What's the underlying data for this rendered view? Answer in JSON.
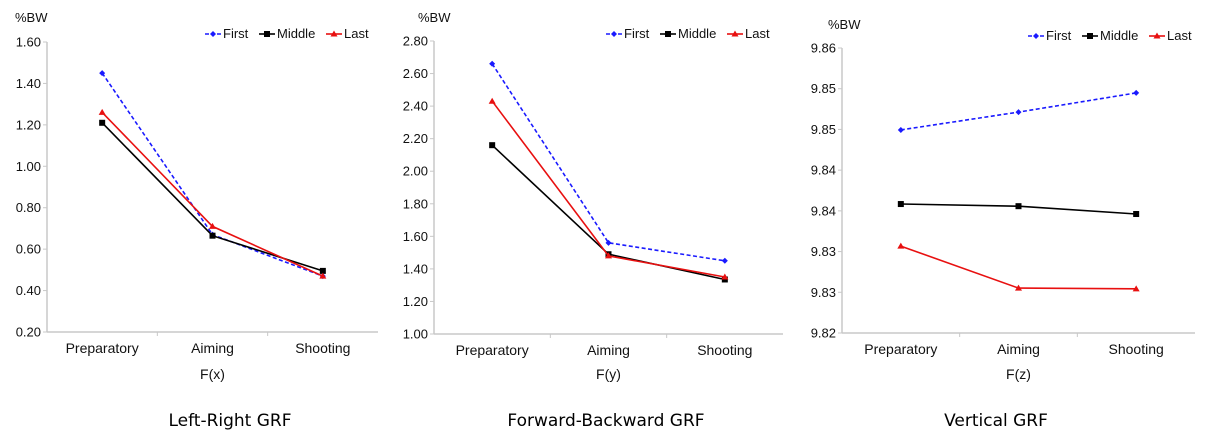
{
  "chart_data": [
    {
      "type": "line",
      "title": "Left-Right GRF",
      "xlabel": "F(x)",
      "ylabel": "%BW",
      "categories": [
        "Preparatory",
        "Aiming",
        "Shooting"
      ],
      "ylim": [
        0.2,
        1.6
      ],
      "yticks": [
        "0.20",
        "0.40",
        "0.60",
        "0.80",
        "1.00",
        "1.20",
        "1.40",
        "1.60"
      ],
      "legend": "top-right",
      "series": [
        {
          "name": "First",
          "values": [
            1.45,
            0.67,
            0.47
          ]
        },
        {
          "name": "Middle",
          "values": [
            1.21,
            0.665,
            0.495
          ]
        },
        {
          "name": "Last",
          "values": [
            1.26,
            0.71,
            0.47
          ]
        }
      ]
    },
    {
      "type": "line",
      "title": "Forward-Backward GRF",
      "xlabel": "F(y)",
      "ylabel": "%BW",
      "categories": [
        "Preparatory",
        "Aiming",
        "Shooting"
      ],
      "ylim": [
        1.0,
        2.8
      ],
      "yticks": [
        "1.00",
        "1.20",
        "1.40",
        "1.60",
        "1.80",
        "2.00",
        "2.20",
        "2.40",
        "2.60",
        "2.80"
      ],
      "legend": "top-right",
      "series": [
        {
          "name": "First",
          "values": [
            2.66,
            1.56,
            1.45
          ]
        },
        {
          "name": "Middle",
          "values": [
            2.16,
            1.49,
            1.335
          ]
        },
        {
          "name": "Last",
          "values": [
            2.43,
            1.48,
            1.35
          ]
        }
      ]
    },
    {
      "type": "line",
      "title": "Vertical GRF",
      "xlabel": "F(z)",
      "ylabel": "%BW",
      "categories": [
        "Preparatory",
        "Aiming",
        "Shooting"
      ],
      "ylim": [
        9.82,
        9.86
      ],
      "yticks": [
        "9.82",
        "9.83",
        "9.83",
        "9.84",
        "9.84",
        "9.85",
        "9.85",
        "9.86"
      ],
      "legend": "top-right",
      "series": [
        {
          "name": "First",
          "values": [
            9.8485,
            9.851,
            9.8537
          ]
        },
        {
          "name": "Middle",
          "values": [
            9.8381,
            9.8378,
            9.8367
          ]
        },
        {
          "name": "Last",
          "values": [
            9.8322,
            9.8263,
            9.8262
          ]
        }
      ]
    }
  ],
  "colors": {
    "First": "#1a1aff",
    "Middle": "#000000",
    "Last": "#e81010"
  }
}
